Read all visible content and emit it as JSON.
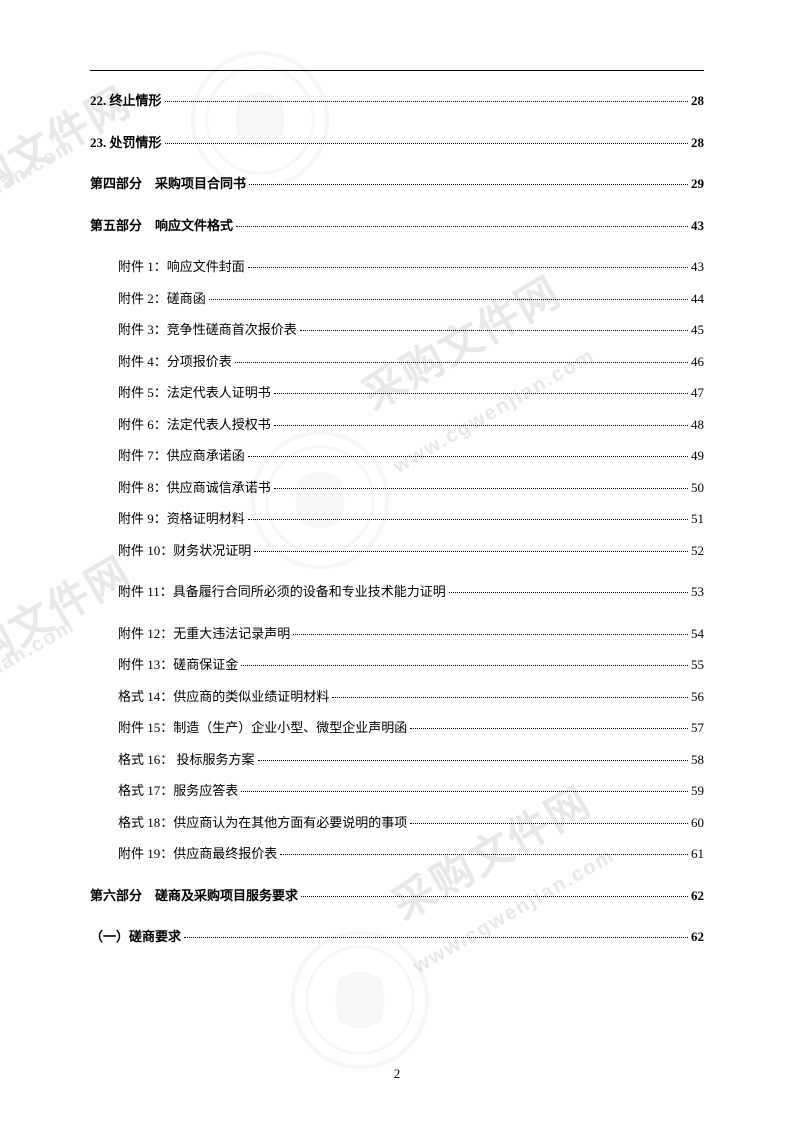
{
  "page_number": "2",
  "toc_entries": [
    {
      "label": "22. 终止情形",
      "page": "28",
      "bold": true,
      "indent": false
    },
    {
      "label": "23. 处罚情形",
      "page": "28",
      "bold": true,
      "indent": false
    },
    {
      "label": "第四部分　采购项目合同书",
      "page": "29",
      "bold": true,
      "indent": false
    },
    {
      "label": "第五部分　响应文件格式",
      "page": "43",
      "bold": true,
      "indent": false
    },
    {
      "label": "附件 1：响应文件封面",
      "page": "43",
      "bold": false,
      "indent": true
    },
    {
      "label": "附件 2：磋商函",
      "page": "44",
      "bold": false,
      "indent": true
    },
    {
      "label": "附件 3：竞争性磋商首次报价表",
      "page": "45",
      "bold": false,
      "indent": true
    },
    {
      "label": "附件 4：分项报价表",
      "page": "46",
      "bold": false,
      "indent": true
    },
    {
      "label": "附件 5：法定代表人证明书",
      "page": "47",
      "bold": false,
      "indent": true
    },
    {
      "label": "附件 6：法定代表人授权书",
      "page": "48",
      "bold": false,
      "indent": true
    },
    {
      "label": "附件 7：供应商承诺函",
      "page": "49",
      "bold": false,
      "indent": true
    },
    {
      "label": "附件 8：供应商诚信承诺书",
      "page": "50",
      "bold": false,
      "indent": true
    },
    {
      "label": "附件 9：资格证明材料",
      "page": "51",
      "bold": false,
      "indent": true
    },
    {
      "label": "附件 10：财务状况证明",
      "page": "52",
      "bold": false,
      "indent": true,
      "extra_space": true
    },
    {
      "label": "附件 11：具备履行合同所必须的设备和专业技术能力证明",
      "page": "53",
      "bold": false,
      "indent": true,
      "extra_space": true
    },
    {
      "label": "附件 12：无重大违法记录声明",
      "page": "54",
      "bold": false,
      "indent": true
    },
    {
      "label": "附件 13：磋商保证金",
      "page": "55",
      "bold": false,
      "indent": true
    },
    {
      "label": "格式 14：供应商的类似业绩证明材料",
      "page": "56",
      "bold": false,
      "indent": true
    },
    {
      "label": "附件 15：制造（生产）企业小型、微型企业声明函",
      "page": "57",
      "bold": false,
      "indent": true
    },
    {
      "label": "格式 16： 投标服务方案",
      "page": "58",
      "bold": false,
      "indent": true
    },
    {
      "label": "格式 17：服务应答表",
      "page": "59",
      "bold": false,
      "indent": true
    },
    {
      "label": "格式 18：供应商认为在其他方面有必要说明的事项",
      "page": "60",
      "bold": false,
      "indent": true
    },
    {
      "label": "附件 19：供应商最终报价表",
      "page": "61",
      "bold": false,
      "indent": true,
      "extra_space": true
    },
    {
      "label": "第六部分　磋商及采购项目服务要求",
      "page": "62",
      "bold": true,
      "indent": false
    },
    {
      "label": "（一）磋商要求",
      "page": "62",
      "bold": true,
      "indent": false
    }
  ],
  "watermark_text": "www.cgwenjian.com",
  "watermark_text_cn": "采购文件网"
}
